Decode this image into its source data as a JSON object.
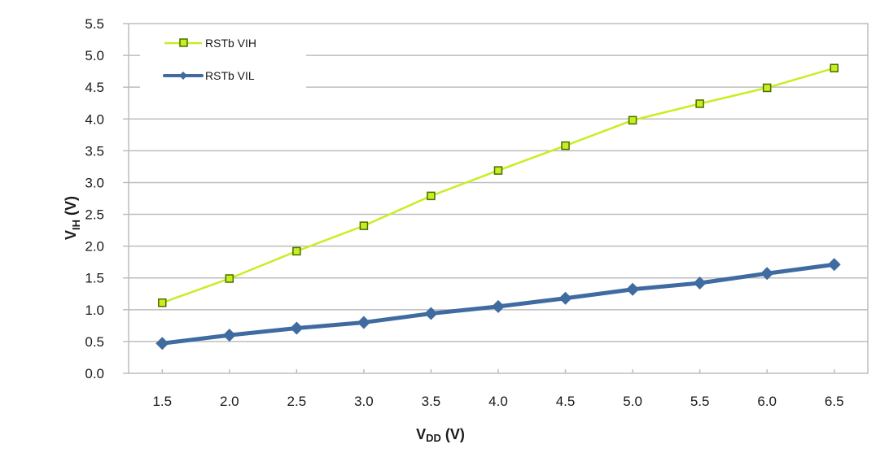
{
  "chart_data": {
    "type": "line",
    "title": "",
    "xlabel": "V_DD (V)",
    "xlabel_main": "V",
    "xlabel_sub": "DD",
    "xlabel_suffix": " (V)",
    "ylabel": "V_IH (V)",
    "ylabel_main": "V",
    "ylabel_sub": "IH",
    "ylabel_suffix": " (V)",
    "x": [
      "1.5",
      "2.0",
      "2.5",
      "3.0",
      "3.5",
      "4.0",
      "4.5",
      "5.0",
      "5.5",
      "6.0",
      "6.5"
    ],
    "ylim": [
      0,
      5.5
    ],
    "yticks": [
      "0.0",
      "0.5",
      "1.0",
      "1.5",
      "2.0",
      "2.5",
      "3.0",
      "3.5",
      "4.0",
      "4.5",
      "5.0",
      "5.5"
    ],
    "ytick_values": [
      0,
      0.5,
      1.0,
      1.5,
      2.0,
      2.5,
      3.0,
      3.5,
      4.0,
      4.5,
      5.0,
      5.5
    ],
    "grid": true,
    "legend_position": "top-left",
    "series": [
      {
        "name": "RSTb VIH",
        "color": "#c6ef1f",
        "marker": "square",
        "marker_edge": "#4f6b00",
        "values": [
          1.11,
          1.49,
          1.92,
          2.32,
          2.79,
          3.19,
          3.58,
          3.98,
          4.24,
          4.49,
          4.8
        ]
      },
      {
        "name": "RSTb VIL",
        "color": "#3f6ba0",
        "marker": "diamond",
        "values": [
          0.47,
          0.6,
          0.71,
          0.8,
          0.94,
          1.05,
          1.18,
          1.32,
          1.42,
          1.57,
          1.71
        ]
      }
    ]
  }
}
